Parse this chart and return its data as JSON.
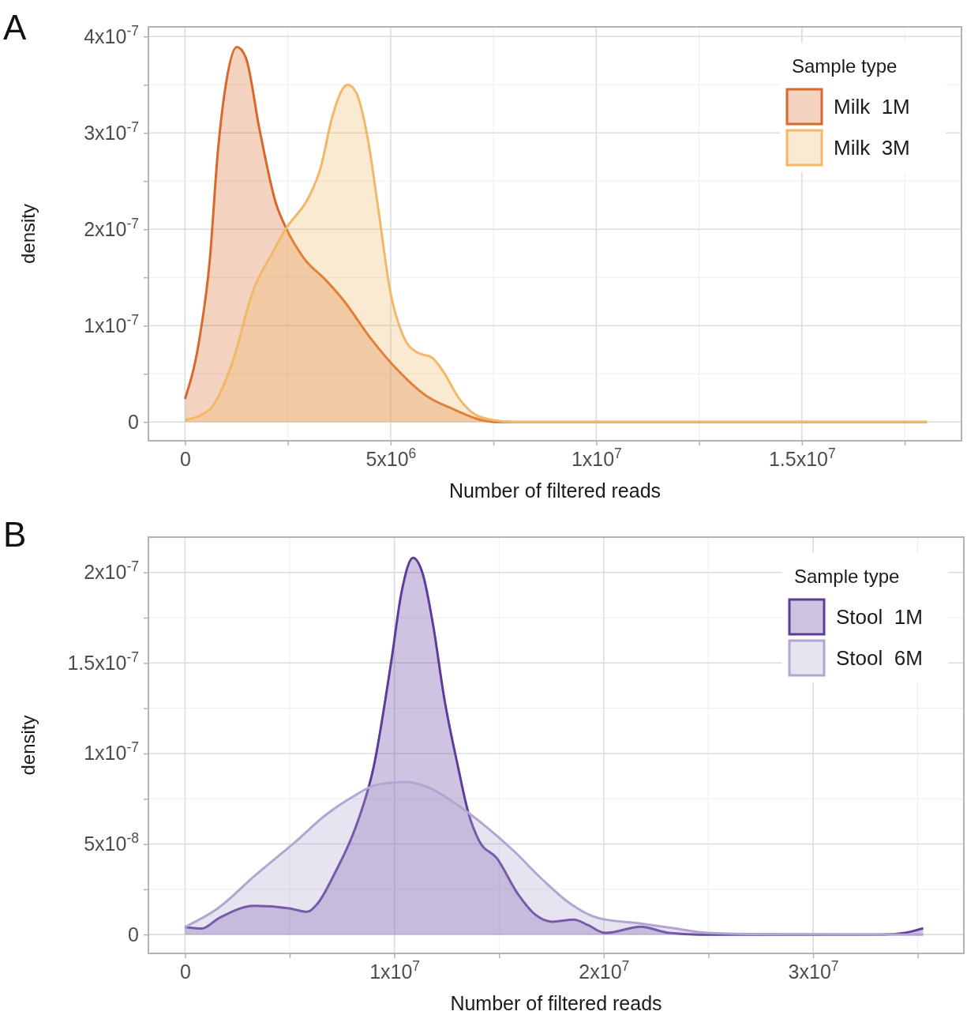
{
  "chart_data": [
    {
      "type": "area",
      "xlabel": "Number of filtered reads",
      "ylabel": "density",
      "legend_title": "Sample type",
      "legend": "top right",
      "grid": true,
      "annotations": [
        "A"
      ],
      "xlim": [
        -890000,
        18880000
      ],
      "ylim": [
        -1.95e-08,
        4.1e-07
      ],
      "xticks": [
        0,
        {
          "value": 2500000,
          "label": null
        },
        {
          "value": 5000000,
          "label": "5x10$^{6}$"
        },
        {
          "value": 7500000,
          "label": null
        },
        {
          "value": 10000000,
          "label": "1x10$^{7}$"
        },
        {
          "value": 12500000,
          "label": null
        },
        {
          "value": 15000000,
          "label": "1.5x10$^{7}$"
        },
        {
          "value": 17500000,
          "label": null
        }
      ],
      "yticks": [
        0,
        {
          "value": 5e-08,
          "label": null
        },
        {
          "value": 1e-07,
          "label": "1x10$^{-7}$"
        },
        {
          "value": 1.5e-07,
          "label": null
        },
        {
          "value": 2e-07,
          "label": "2x10$^{-7}$"
        },
        {
          "value": 2.5e-07,
          "label": null
        },
        {
          "value": 3e-07,
          "label": "3x10$^{-7}$"
        },
        {
          "value": 3.5e-07,
          "label": null
        },
        {
          "value": 4e-07,
          "label": "4x10$^{-7}$"
        }
      ],
      "series": [
        {
          "name": "Milk  1M",
          "color": "#d8692a",
          "x": [
            0,
            330000,
            600000,
            800000,
            1000000,
            1260000,
            1480000,
            1810000,
            2210000,
            2460000,
            2890000,
            3430000,
            3840000,
            4510000,
            5190000,
            5870000,
            6540000,
            7210000,
            7550000,
            9000000,
            18040000
          ],
          "values": [
            2.4e-08,
            8.1e-08,
            1.67e-07,
            2.81e-07,
            3.52e-07,
            3.89e-07,
            3.78e-07,
            3.04e-07,
            2.27e-07,
            2.01e-07,
            1.7e-07,
            1.47e-07,
            1.27e-07,
            8.7e-08,
            5.3e-08,
            2.7e-08,
            1.3e-08,
            2e-09,
            0,
            0,
            0
          ]
        },
        {
          "name": "Milk  3M",
          "color": "#f0b868",
          "x": [
            0,
            600000,
            1130000,
            1670000,
            2080000,
            2460000,
            3030000,
            3300000,
            3570000,
            3840000,
            3960000,
            4170000,
            4440000,
            4710000,
            4980000,
            5330000,
            5650000,
            6000000,
            6270000,
            6670000,
            7080000,
            7480000,
            8000000,
            18040000
          ],
          "values": [
            2e-09,
            1.3e-08,
            5.9e-08,
            1.38e-07,
            1.72e-07,
            2.01e-07,
            2.35e-07,
            2.64e-07,
            3.15e-07,
            3.46e-07,
            3.5e-07,
            3.41e-07,
            2.95e-07,
            2.18e-07,
            1.38e-07,
            8.7e-08,
            7.2e-08,
            6.7e-08,
            5.3e-08,
            2.4e-08,
            7e-09,
            2e-09,
            0,
            0
          ]
        }
      ]
    },
    {
      "type": "area",
      "xlabel": "Number of filtered reads",
      "ylabel": "density",
      "legend_title": "Sample type",
      "legend": "top right",
      "grid": true,
      "annotations": [
        "B"
      ],
      "xlim": [
        -1750000,
        37200000
      ],
      "ylim": [
        -1.04e-08,
        2.195e-07
      ],
      "xticks": [
        0,
        {
          "value": 5000000,
          "label": null
        },
        {
          "value": 10000000,
          "label": "1x10$^{7}$"
        },
        {
          "value": 15000000,
          "label": null
        },
        {
          "value": 20000000,
          "label": "2x10$^{7}$"
        },
        {
          "value": 25000000,
          "label": null
        },
        {
          "value": 30000000,
          "label": "3x10$^{7}$"
        },
        {
          "value": 35000000,
          "label": null
        }
      ],
      "yticks": [
        0,
        {
          "value": 2.5e-08,
          "label": null
        },
        {
          "value": 5e-08,
          "label": "5x10$^{-8}$"
        },
        {
          "value": 7.5e-08,
          "label": null
        },
        {
          "value": 1e-07,
          "label": "1x10$^{-7}$"
        },
        {
          "value": 1.25e-07,
          "label": null
        },
        {
          "value": 1.5e-07,
          "label": "1.5x10$^{-7}$"
        },
        {
          "value": 1.75e-07,
          "label": null
        },
        {
          "value": 2e-07,
          "label": "2x10$^{-7}$"
        }
      ],
      "series": [
        {
          "name": "Stool  1M",
          "color": "#5d3c9a",
          "x": [
            0,
            790000,
            1620000,
            3310000,
            4980000,
            5830000,
            6320000,
            7170000,
            8160000,
            9010000,
            9850000,
            10350000,
            10890000,
            11350000,
            11860000,
            12370000,
            13040000,
            13530000,
            14050000,
            14890000,
            15890000,
            16730000,
            17560000,
            18570000,
            19250000,
            20080000,
            21770000,
            23110000,
            24590000,
            28800000,
            33300000,
            34400000,
            35260000
          ],
          "values": [
            4.2e-09,
            3.3e-09,
            9.1e-09,
            1.59e-08,
            1.45e-08,
            1.26e-08,
            1.7e-08,
            3.43e-08,
            5.96e-08,
            9.26e-08,
            1.509e-07,
            1.896e-07,
            2.08e-07,
            1.993e-07,
            1.702e-07,
            1.313e-07,
            9.26e-08,
            6.74e-08,
            5.17e-08,
            4.22e-08,
            2.26e-08,
            1.1e-08,
            7.1e-09,
            8.3e-09,
            5.2e-09,
            9e-10,
            4.3e-09,
            9e-10,
            0,
            0,
            0,
            1e-09,
            3.5e-09
          ]
        },
        {
          "name": "Stool  6M",
          "color": "#b1a6d1",
          "x": [
            0,
            1620000,
            3310000,
            5320000,
            6650000,
            8010000,
            9170000,
            10600000,
            11690000,
            13050000,
            14380000,
            15710000,
            17070000,
            18410000,
            19740000,
            21770000,
            23440000,
            24590000,
            26900000,
            35260000
          ],
          "values": [
            4.2e-09,
            1.49e-08,
            3.23e-08,
            5.17e-08,
            6.54e-08,
            7.61e-08,
            8.28e-08,
            8.43e-08,
            8.09e-08,
            7.13e-08,
            5.96e-08,
            4.61e-08,
            3.04e-08,
            1.7e-08,
            9.1e-09,
            6.1e-09,
            3.3e-09,
            1.3e-09,
            3e-10,
            0
          ]
        }
      ]
    }
  ]
}
